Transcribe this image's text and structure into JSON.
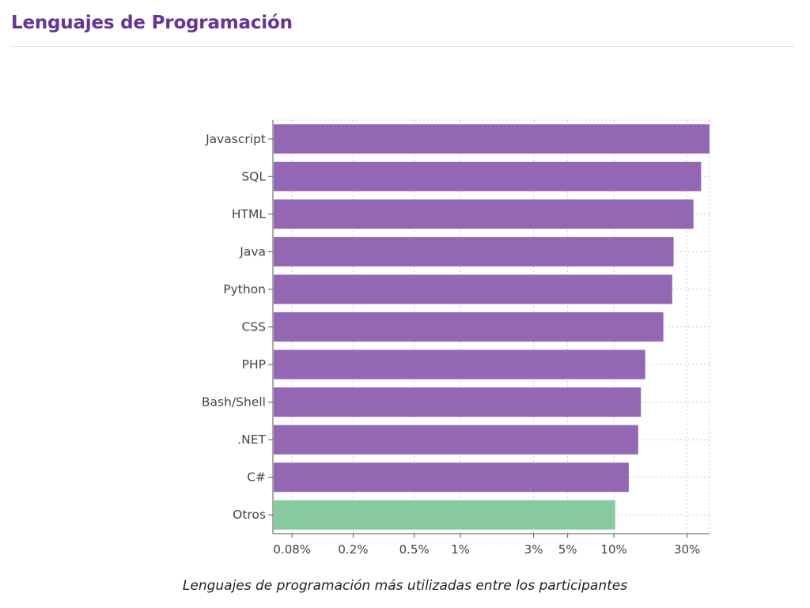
{
  "header": {
    "title": "Lenguajes de Programación"
  },
  "chart_data": {
    "type": "bar",
    "orientation": "horizontal",
    "title": "",
    "xlabel": "",
    "ylabel": "",
    "x_scale": "log",
    "xlim": [
      0.06,
      42
    ],
    "grid": true,
    "categories": [
      "Javascript",
      "SQL",
      "HTML",
      "Java",
      "Python",
      "CSS",
      "PHP",
      "Bash/Shell",
      ".NET",
      "C#",
      "Otros"
    ],
    "values": [
      42,
      37,
      33,
      24.5,
      24,
      21,
      16,
      15,
      14.4,
      12.5,
      10.2
    ],
    "colors": [
      "#9467b5",
      "#9467b5",
      "#9467b5",
      "#9467b5",
      "#9467b5",
      "#9467b5",
      "#9467b5",
      "#9467b5",
      "#9467b5",
      "#9467b5",
      "#86ca9d"
    ],
    "x_ticks": [
      {
        "value": 0.08,
        "label": "0.08%"
      },
      {
        "value": 0.2,
        "label": "0.2%"
      },
      {
        "value": 0.5,
        "label": "0.5%"
      },
      {
        "value": 1,
        "label": "1%"
      },
      {
        "value": 3,
        "label": "3%"
      },
      {
        "value": 5,
        "label": "5%"
      },
      {
        "value": 10,
        "label": "10%"
      },
      {
        "value": 30,
        "label": "30%"
      }
    ],
    "caption": "Lenguajes de programación más utilizadas entre los participantes"
  }
}
